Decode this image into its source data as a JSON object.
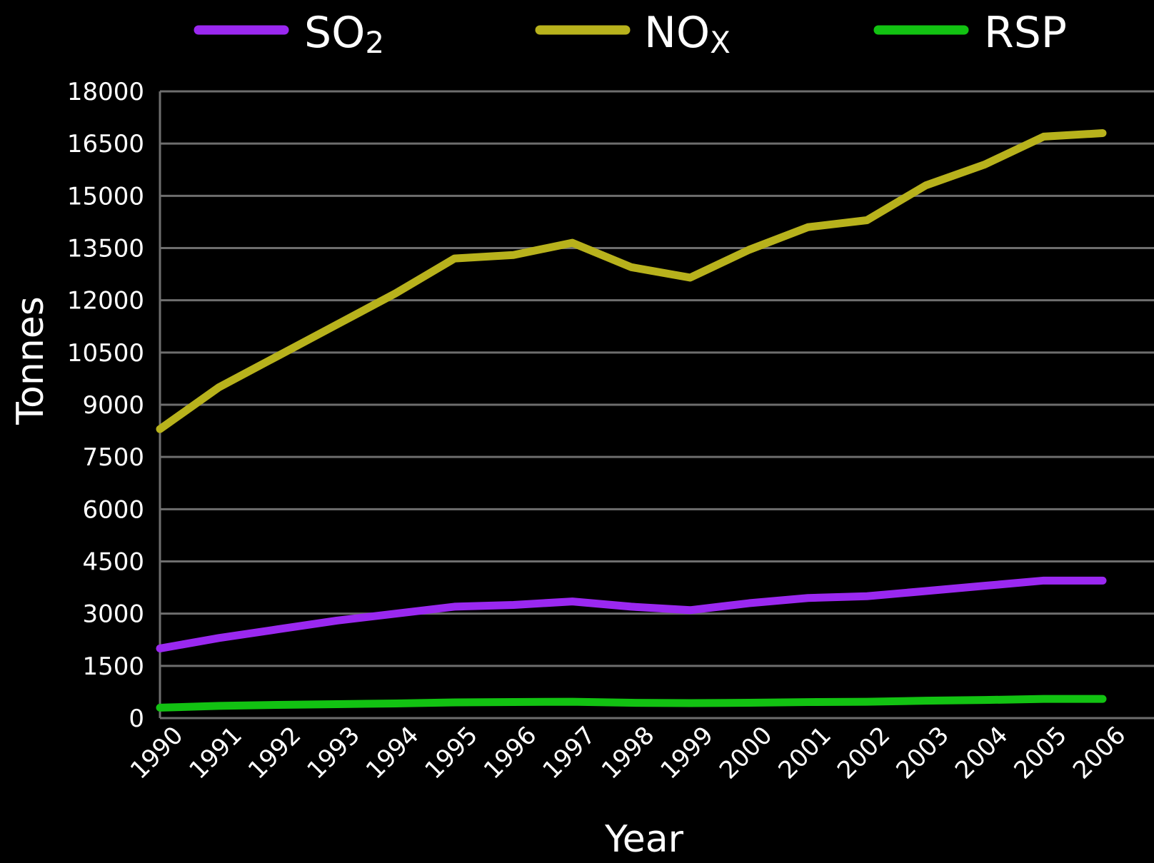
{
  "chart_data": {
    "type": "line",
    "title": "",
    "xlabel": "Year",
    "ylabel": "Tonnes",
    "ylim": [
      0,
      18000
    ],
    "yticks": [
      0,
      1500,
      3000,
      4500,
      6000,
      7500,
      9000,
      10500,
      12000,
      13500,
      15000,
      16500,
      18000
    ],
    "grid": true,
    "legend_position": "top",
    "x": [
      "1990",
      "1991",
      "1992",
      "1993",
      "1994",
      "1995",
      "1996",
      "1997",
      "1998",
      "1999",
      "2000",
      "2001",
      "2002",
      "2003",
      "2004",
      "2005",
      "2006"
    ],
    "series": [
      {
        "name": "SO2",
        "label_main": "SO",
        "label_sub": "2",
        "color": "#9a28f0",
        "values": [
          2000,
          2300,
          2550,
          2800,
          3000,
          3200,
          3250,
          3350,
          3200,
          3100,
          3300,
          3450,
          3500,
          3650,
          3800,
          3950,
          3950
        ]
      },
      {
        "name": "NOX",
        "label_main": "NO",
        "label_sub": "X",
        "color": "#b8b21c",
        "values": [
          8300,
          9500,
          10400,
          11300,
          12200,
          13200,
          13300,
          13650,
          12950,
          12650,
          13450,
          14100,
          14300,
          15300,
          15900,
          16700,
          16800
        ]
      },
      {
        "name": "RSP",
        "label_main": "RSP",
        "label_sub": "",
        "color": "#12c212",
        "values": [
          300,
          350,
          380,
          400,
          420,
          450,
          460,
          470,
          440,
          430,
          440,
          460,
          470,
          500,
          520,
          550,
          550
        ]
      }
    ]
  }
}
